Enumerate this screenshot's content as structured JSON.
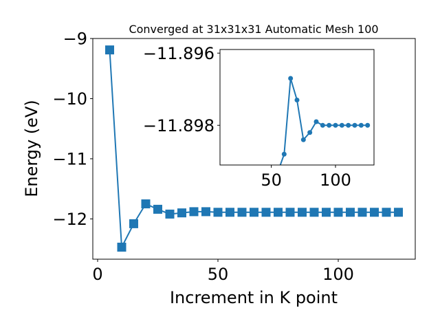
{
  "chart_data": [
    {
      "type": "line",
      "title": "Converged at 31x31x31 Automatic Mesh 100",
      "xlabel": "Increment in K point",
      "ylabel": "Energy (eV)",
      "xlim": [
        -2,
        132
      ],
      "ylim": [
        -12.67,
        -9.0
      ],
      "xticks": [
        0,
        50,
        100
      ],
      "xtick_labels": [
        "0",
        "50",
        "100"
      ],
      "yticks": [
        -9,
        -10,
        -11,
        -12
      ],
      "ytick_labels": [
        "−9",
        "−10",
        "−11",
        "−12"
      ],
      "grid": false,
      "legend": "none",
      "marker": "square",
      "color": "#1f77b4",
      "series": [
        {
          "x": [
            5,
            10,
            15,
            20,
            25,
            30,
            35,
            40,
            45,
            50,
            55,
            60,
            65,
            70,
            75,
            80,
            85,
            90,
            95,
            100,
            105,
            110,
            115,
            120,
            125
          ],
          "values": [
            -9.19,
            -12.47,
            -12.08,
            -11.75,
            -11.84,
            -11.92,
            -11.9,
            -11.88,
            -11.88,
            -11.89,
            -11.89,
            -11.89,
            -11.89,
            -11.89,
            -11.89,
            -11.89,
            -11.89,
            -11.89,
            -11.89,
            -11.89,
            -11.89,
            -11.89,
            -11.89,
            -11.89,
            -11.89
          ]
        }
      ]
    },
    {
      "type": "line",
      "title": "",
      "xlabel": "",
      "ylabel": "",
      "xlim": [
        10,
        130
      ],
      "ylim": [
        -11.8991,
        -11.8959
      ],
      "xticks": [
        50,
        100
      ],
      "xtick_labels": [
        "50",
        "100"
      ],
      "yticks": [
        -11.898,
        -11.896
      ],
      "ytick_labels": [
        "−11.898",
        "−11.896"
      ],
      "grid": false,
      "legend": "none",
      "marker": "circle",
      "color": "#1f77b4",
      "series": [
        {
          "x": [
            55,
            60,
            65,
            70,
            75,
            80,
            85,
            90,
            95,
            100,
            105,
            110,
            115,
            120,
            125
          ],
          "values": [
            -11.8993,
            -11.8988,
            -11.8967,
            -11.8973,
            -11.8984,
            -11.8982,
            -11.8979,
            -11.898,
            -11.898,
            -11.898,
            -11.898,
            -11.898,
            -11.898,
            -11.898,
            -11.898
          ]
        }
      ]
    }
  ]
}
